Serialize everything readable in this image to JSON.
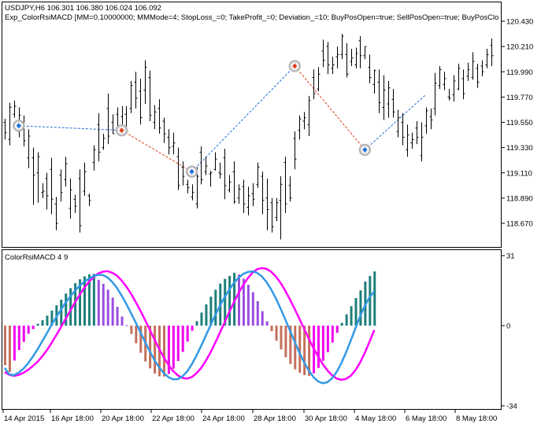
{
  "symbol_line": "USDJPY,H6  106.301 106.380 106.024 106.092",
  "expert_line": "Exp_ColorRsiMACD [MM=0.10000000; MMMode=4; StopLoss_=0; TakeProfit_=0; Deviation_=10; BuyPosOpen=true; SellPosOpen=true; BuyPosClo",
  "indicator_label": "ColorRsiMACD 4 9",
  "price_axis_labels": [
    "120.430",
    "120.210",
    "119.990",
    "119.770",
    "119.550",
    "119.330",
    "119.110",
    "118.890",
    "118.670"
  ],
  "indicator_axis_labels": [
    "31",
    "0",
    "-34"
  ],
  "time_axis_labels": [
    "14 Apr 2015",
    "16 Apr 18:00",
    "20 Apr 18:00",
    "22 Apr 18:00",
    "24 Apr 18:00",
    "28 Apr 18:00",
    "30 Apr 18:00",
    "4 May 18:00",
    "6 May 18:00",
    "8 May 18:00"
  ],
  "colors": {
    "bar": "#000000",
    "buy_arrow": "#1E6FD9",
    "sell_arrow": "#E0401A",
    "buy_line": "#1E6FD9",
    "sell_line": "#E0401A",
    "hist_up_strong": "#1E7F7A",
    "hist_up_weak": "#9B4DE0",
    "hist_down_strong": "#C4705C",
    "hist_down_weak": "#F000F0",
    "signal_line": "#FF00FF",
    "macd_line": "#3399E6",
    "border": "#000000"
  },
  "price_bars": [
    [
      119.55,
      119.46,
      119.58,
      119.4
    ],
    [
      119.4,
      119.68,
      119.72,
      119.35
    ],
    [
      119.62,
      119.69,
      119.74,
      119.59
    ],
    [
      119.47,
      119.61,
      119.68,
      119.42
    ],
    [
      119.52,
      119.39,
      119.61,
      119.34
    ],
    [
      119.24,
      119.43,
      119.49,
      119.15
    ],
    [
      119.24,
      119.09,
      119.33,
      118.83
    ],
    [
      119.11,
      119.25,
      119.29,
      118.85
    ],
    [
      118.94,
      118.95,
      119.02,
      118.89
    ],
    [
      119.06,
      118.91,
      119.11,
      118.79
    ],
    [
      119.14,
      118.88,
      119.24,
      118.75
    ],
    [
      118.84,
      118.67,
      118.9,
      118.61
    ],
    [
      119.09,
      118.94,
      119.14,
      118.86
    ],
    [
      119.05,
      119.19,
      119.25,
      118.99
    ],
    [
      118.8,
      118.96,
      119.06,
      118.71
    ],
    [
      118.88,
      118.82,
      118.92,
      118.76
    ],
    [
      119.06,
      118.65,
      119.14,
      118.59
    ],
    [
      118.95,
      119.12,
      119.2,
      118.91
    ],
    [
      118.91,
      118.87,
      118.93,
      118.82
    ],
    [
      119.2,
      119.31,
      119.35,
      119.13
    ],
    [
      119.53,
      119.29,
      119.63,
      119.21
    ],
    [
      119.33,
      119.41,
      119.45,
      119.31
    ],
    [
      119.67,
      119.43,
      119.8,
      119.36
    ],
    [
      119.55,
      119.45,
      119.62,
      119.45
    ],
    [
      119.62,
      119.51,
      119.68,
      119.47
    ],
    [
      119.6,
      119.51,
      119.69,
      119.43
    ],
    [
      119.62,
      119.47,
      119.69,
      119.45
    ],
    [
      119.67,
      119.87,
      119.91,
      119.63
    ],
    [
      119.9,
      119.76,
      119.99,
      119.67
    ],
    [
      119.82,
      119.59,
      119.93,
      119.53
    ],
    [
      119.83,
      120.03,
      120.09,
      119.71
    ],
    [
      119.94,
      119.61,
      120.0,
      119.56
    ],
    [
      119.55,
      119.64,
      119.7,
      119.49
    ],
    [
      119.67,
      119.5,
      119.75,
      119.45
    ],
    [
      119.56,
      119.45,
      119.59,
      119.37
    ],
    [
      119.42,
      119.33,
      119.49,
      119.27
    ],
    [
      119.34,
      119.37,
      119.46,
      119.27
    ],
    [
      119.25,
      119.0,
      119.33,
      118.96
    ],
    [
      119.16,
      119.08,
      119.21,
      119.0
    ],
    [
      119.01,
      118.98,
      119.05,
      118.93
    ],
    [
      118.9,
      118.94,
      119.01,
      118.87
    ],
    [
      118.84,
      119.08,
      119.16,
      118.8
    ],
    [
      119.29,
      119.05,
      119.34,
      119.01
    ],
    [
      119.12,
      119.17,
      119.25,
      119.09
    ],
    [
      119.1,
      119.11,
      119.13,
      118.99
    ],
    [
      119.14,
      119.23,
      119.29,
      119.13
    ],
    [
      119.11,
      119.1,
      119.2,
      119.06
    ],
    [
      119.24,
      119.0,
      119.32,
      118.88
    ],
    [
      118.96,
      119.03,
      119.09,
      118.94
    ],
    [
      119.12,
      118.86,
      119.21,
      118.84
    ],
    [
      118.89,
      118.97,
      119.01,
      118.84
    ],
    [
      118.99,
      118.84,
      119.05,
      118.76
    ],
    [
      118.81,
      118.91,
      118.99,
      118.74
    ],
    [
      118.93,
      118.88,
      119.02,
      118.82
    ],
    [
      119.01,
      119.16,
      119.2,
      118.98
    ],
    [
      119.08,
      118.87,
      119.12,
      118.75
    ],
    [
      118.89,
      118.79,
      119.06,
      118.61
    ],
    [
      118.85,
      118.64,
      118.89,
      118.59
    ],
    [
      118.72,
      118.85,
      118.89,
      118.69
    ],
    [
      118.87,
      119.01,
      119.08,
      118.53
    ],
    [
      119.2,
      118.84,
      119.25,
      118.76
    ],
    [
      119.0,
      118.89,
      119.08,
      118.86
    ],
    [
      119.41,
      119.23,
      119.47,
      119.14
    ],
    [
      119.48,
      119.58,
      119.61,
      119.4
    ],
    [
      119.56,
      119.59,
      119.64,
      119.49
    ],
    [
      119.53,
      119.74,
      119.78,
      119.43
    ],
    [
      119.94,
      119.8,
      120.01,
      119.75
    ],
    [
      119.84,
      119.97,
      120.03,
      119.82
    ],
    [
      120.17,
      120.09,
      120.27,
      120.03
    ],
    [
      120.21,
      120.05,
      120.25,
      119.97
    ],
    [
      120.02,
      120.05,
      120.12,
      119.97
    ],
    [
      120.12,
      120.14,
      120.21,
      120.02
    ],
    [
      120.14,
      120.3,
      120.32,
      120.1
    ],
    [
      120.14,
      119.97,
      120.24,
      119.94
    ],
    [
      120.08,
      120.11,
      120.19,
      120.04
    ],
    [
      120.05,
      120.15,
      120.2,
      120.02
    ],
    [
      120.26,
      120.13,
      120.3,
      120.02
    ],
    [
      120.13,
      120.21,
      120.21,
      120.1
    ],
    [
      120.03,
      119.94,
      120.14,
      119.89
    ],
    [
      119.88,
      120.0,
      120.01,
      119.8
    ],
    [
      119.9,
      119.72,
      120.01,
      119.63
    ],
    [
      119.68,
      119.83,
      119.96,
      119.57
    ],
    [
      119.71,
      119.85,
      119.91,
      119.59
    ],
    [
      119.75,
      119.64,
      119.84,
      119.59
    ],
    [
      119.47,
      119.59,
      119.66,
      119.42
    ],
    [
      119.55,
      119.42,
      119.63,
      119.35
    ],
    [
      119.31,
      119.44,
      119.53,
      119.25
    ],
    [
      119.37,
      119.4,
      119.46,
      119.32
    ],
    [
      119.5,
      119.42,
      119.56,
      119.36
    ],
    [
      119.26,
      119.42,
      119.55,
      119.21
    ],
    [
      119.52,
      119.65,
      119.68,
      119.45
    ],
    [
      119.6,
      119.57,
      119.67,
      119.49
    ],
    [
      119.67,
      119.89,
      119.98,
      119.61
    ],
    [
      119.87,
      120.01,
      120.04,
      119.84
    ],
    [
      119.88,
      119.93,
      119.99,
      119.83
    ],
    [
      119.77,
      119.76,
      119.84,
      119.74
    ],
    [
      119.79,
      119.91,
      119.96,
      119.73
    ],
    [
      119.84,
      120.02,
      120.06,
      119.83
    ],
    [
      119.93,
      119.8,
      120.01,
      119.75
    ],
    [
      119.95,
      120.01,
      120.07,
      119.91
    ],
    [
      119.94,
      120.08,
      120.16,
      119.92
    ],
    [
      120.02,
      119.9,
      120.06,
      119.85
    ],
    [
      120.04,
      119.99,
      120.09,
      119.95
    ],
    [
      120.05,
      120.14,
      120.19,
      120.02
    ],
    [
      120.22,
      120.13,
      120.28,
      120.04
    ]
  ],
  "arrows": [
    {
      "bar": 3,
      "price": 119.52,
      "side": "buy"
    },
    {
      "bar": 25,
      "price": 119.48,
      "side": "sell"
    },
    {
      "bar": 40,
      "price": 119.12,
      "side": "buy"
    },
    {
      "bar": 62,
      "price": 120.04,
      "side": "sell"
    },
    {
      "bar": 77,
      "price": 119.31,
      "side": "buy"
    }
  ],
  "signal_lines": [
    {
      "from": [
        3,
        119.52
      ],
      "to": [
        25,
        119.48
      ],
      "side": "buy"
    },
    {
      "from": [
        25,
        119.48
      ],
      "to": [
        40,
        119.12
      ],
      "side": "sell"
    },
    {
      "from": [
        40,
        119.12
      ],
      "to": [
        62,
        120.04
      ],
      "side": "buy"
    },
    {
      "from": [
        62,
        120.04
      ],
      "to": [
        77,
        119.31
      ],
      "side": "sell"
    },
    {
      "from": [
        77,
        119.31
      ],
      "to": [
        90,
        119.79
      ],
      "side": "buy"
    }
  ],
  "histogram": [
    -17.0,
    -19.9,
    -15.0,
    -10.5,
    -7.0,
    -3.5,
    -1.5,
    0.8,
    2.4,
    4.4,
    6.6,
    9.0,
    11.5,
    14.2,
    16.6,
    18.8,
    20.5,
    21.8,
    22.7,
    22.9,
    20.3,
    18.5,
    15.9,
    12.4,
    8.3,
    4.0,
    0.2,
    -3.6,
    -7.6,
    -11.7,
    -15.4,
    -18.4,
    -20.6,
    -21.8,
    -21.9,
    -20.8,
    -18.5,
    -15.2,
    -11.3,
    -6.9,
    -2.2,
    2.0,
    5.8,
    9.4,
    12.8,
    15.9,
    18.6,
    20.7,
    22.0,
    23.4,
    22.6,
    20.8,
    18.1,
    14.8,
    10.8,
    6.4,
    1.9,
    -2.4,
    -6.5,
    -10.2,
    -13.6,
    -16.5,
    -18.8,
    -20.3,
    -21.3,
    -21.6,
    -20.5,
    -18.2,
    -15.1,
    -11.4,
    -7.3,
    -3.1,
    1.2,
    5.0,
    8.6,
    12.2,
    15.6,
    19.5,
    22.0,
    24.0
  ],
  "signal_line": [
    -20.0,
    -21.2,
    -21.6,
    -21.2,
    -20.3,
    -19.0,
    -17.4,
    -15.6,
    -13.3,
    -10.6,
    -7.5,
    -4.2,
    -0.7,
    2.9,
    6.6,
    10.2,
    13.6,
    16.7,
    19.4,
    21.5,
    23.1,
    23.9,
    24.1,
    23.4,
    22.1,
    20.0,
    17.3,
    14.1,
    10.5,
    6.6,
    2.5,
    -1.7,
    -5.9,
    -9.9,
    -13.6,
    -16.9,
    -19.5,
    -21.4,
    -22.5,
    -22.8,
    -22.1,
    -20.5,
    -18.2,
    -15.1,
    -11.5,
    -7.4,
    -3.1,
    1.4,
    6.0,
    10.4,
    14.5,
    18.0,
    21.1,
    23.5,
    25.0,
    25.5,
    25.1,
    23.8,
    21.7,
    18.8,
    15.4,
    11.5,
    7.3,
    3.0,
    -1.3,
    -5.6,
    -9.6,
    -13.3,
    -16.6,
    -19.3,
    -21.4,
    -22.8,
    -23.3,
    -22.9,
    -21.5,
    -19.1,
    -15.8,
    -11.6,
    -6.9,
    -1.9
  ],
  "macd_line": [
    -18.2,
    -21.0,
    -21.3,
    -20.2,
    -18.5,
    -16.2,
    -13.4,
    -10.2,
    -6.8,
    -3.3,
    0.3,
    3.7,
    7.0,
    10.1,
    12.9,
    15.4,
    17.6,
    19.4,
    20.8,
    21.9,
    22.5,
    22.4,
    21.3,
    19.3,
    16.6,
    13.3,
    9.6,
    5.5,
    1.4,
    -2.8,
    -7.0,
    -11.0,
    -14.8,
    -17.9,
    -20.4,
    -22.2,
    -23.1,
    -23.0,
    -21.8,
    -19.7,
    -16.6,
    -12.9,
    -8.7,
    -4.3,
    0.2,
    4.6,
    8.7,
    12.6,
    15.9,
    18.9,
    21.2,
    22.9,
    23.8,
    24.0,
    23.3,
    21.7,
    19.2,
    15.9,
    11.9,
    7.4,
    2.6,
    -2.2,
    -7.0,
    -11.6,
    -15.8,
    -19.3,
    -22.1,
    -24.0,
    -24.8,
    -24.3,
    -22.6,
    -19.8,
    -16.0,
    -11.4,
    -6.3,
    -1.0,
    4.2,
    8.8,
    12.6,
    15.2
  ]
}
